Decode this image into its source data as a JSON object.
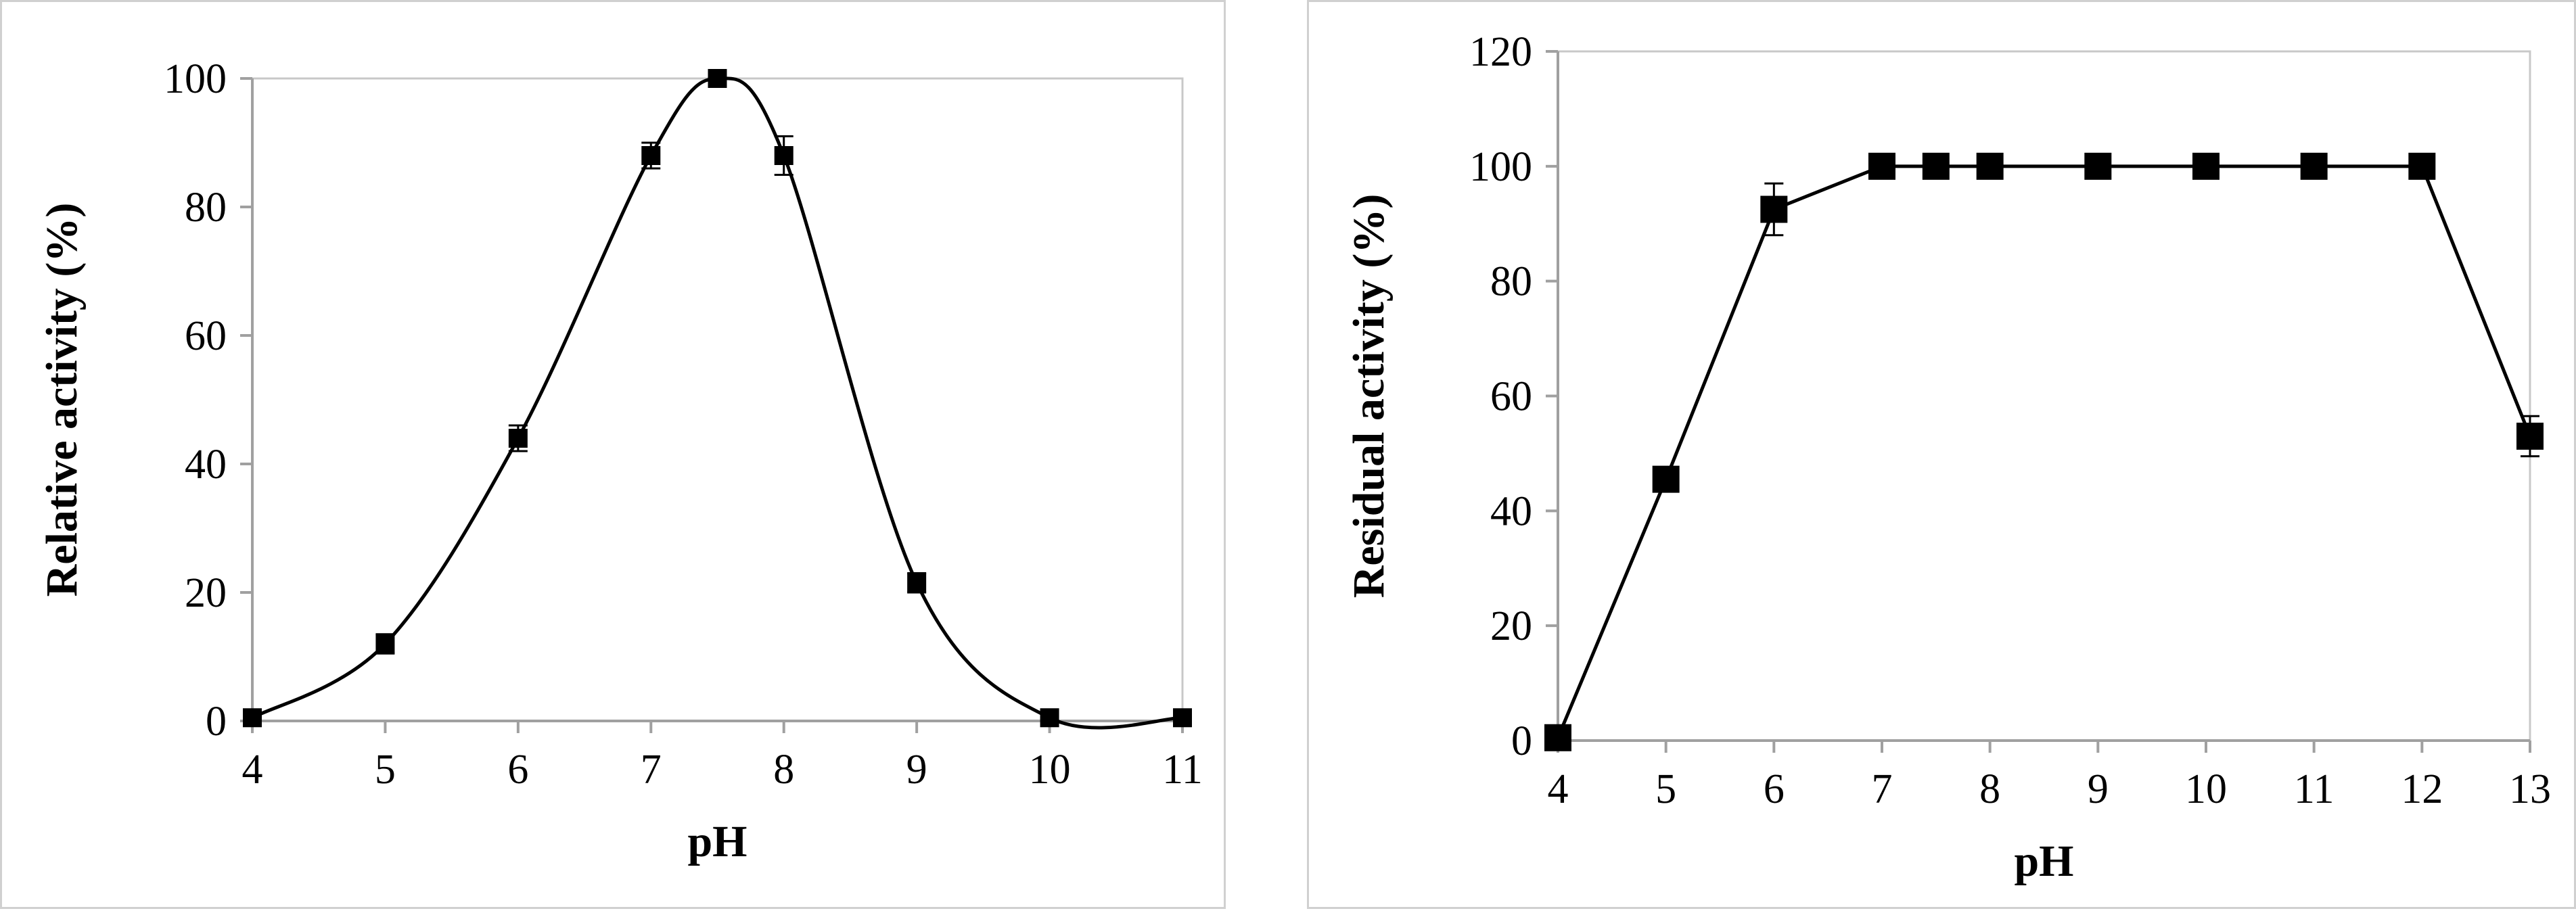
{
  "chart_data": [
    {
      "type": "line",
      "xlabel": "pH",
      "ylabel": "Relative activity (%)",
      "xlim": [
        4,
        11
      ],
      "ylim": [
        0,
        100
      ],
      "x_ticks": [
        "4",
        "5",
        "6",
        "7",
        "8",
        "9",
        "10",
        "11"
      ],
      "y_ticks": [
        "0",
        "20",
        "40",
        "60",
        "80",
        "100"
      ],
      "grid": false,
      "smooth": true,
      "series": [
        {
          "marker": "square",
          "color": "#000000",
          "x": [
            4,
            5,
            6,
            7,
            7.5,
            8,
            9,
            10,
            11
          ],
          "y": [
            0.5,
            12,
            44,
            88,
            100,
            88,
            21.5,
            0.5,
            0.5
          ],
          "error": [
            0,
            1.5,
            2,
            2,
            0,
            3,
            1.5,
            0,
            0
          ]
        }
      ]
    },
    {
      "type": "line",
      "xlabel": "pH",
      "ylabel": "Residual activity (%)",
      "xlim": [
        4,
        13
      ],
      "ylim": [
        0,
        120
      ],
      "x_ticks": [
        "4",
        "5",
        "6",
        "7",
        "8",
        "9",
        "10",
        "11",
        "12",
        "13"
      ],
      "y_ticks": [
        "0",
        "20",
        "40",
        "60",
        "80",
        "100",
        "120"
      ],
      "grid": false,
      "smooth": false,
      "series": [
        {
          "marker": "square",
          "color": "#000000",
          "x": [
            4,
            5,
            6,
            7,
            7.5,
            8,
            9,
            10,
            11,
            12,
            13
          ],
          "y": [
            0.5,
            45.5,
            92.5,
            100,
            100,
            100,
            100,
            100,
            100,
            100,
            53
          ],
          "error": [
            0,
            0,
            4.5,
            0,
            0,
            0,
            0,
            0,
            0,
            0,
            3.5
          ]
        }
      ]
    }
  ]
}
